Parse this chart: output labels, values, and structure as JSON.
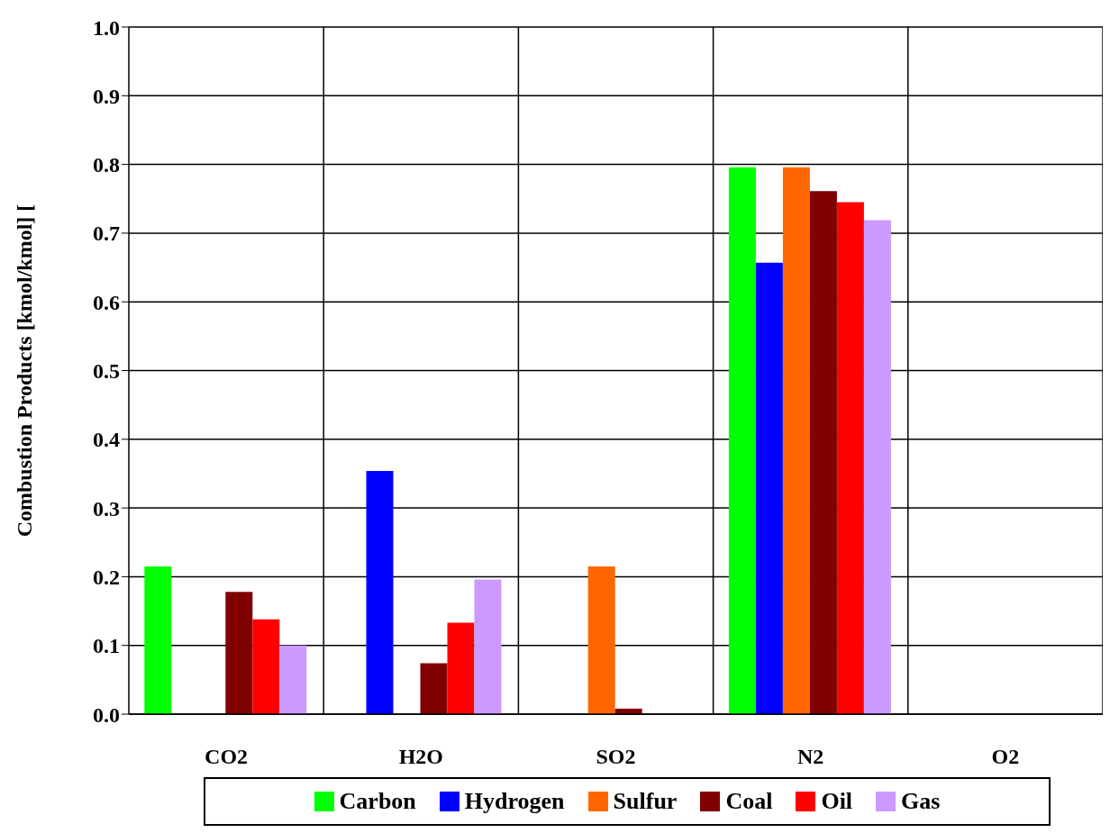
{
  "chart_data": {
    "type": "bar",
    "ylabel": "Combustion Products [kmol/kmol] [",
    "categories": [
      "CO2",
      "H2O",
      "SO2",
      "N2",
      "O2"
    ],
    "series": [
      {
        "name": "Carbon",
        "color": "#00ff00",
        "values": [
          0.215,
          0,
          0,
          0.796,
          0
        ]
      },
      {
        "name": "Hydrogen",
        "color": "#0000ff",
        "values": [
          0,
          0.354,
          0,
          0.657,
          0
        ]
      },
      {
        "name": "Sulfur",
        "color": "#ff6600",
        "values": [
          0,
          0,
          0.215,
          0.796,
          0
        ]
      },
      {
        "name": "Coal",
        "color": "#800000",
        "values": [
          0.178,
          0.074,
          0.008,
          0.761,
          0
        ]
      },
      {
        "name": "Oil",
        "color": "#ff0000",
        "values": [
          0.138,
          0.133,
          0,
          0.745,
          0
        ]
      },
      {
        "name": "Gas",
        "color": "#cc99ff",
        "values": [
          0.1,
          0.196,
          0,
          0.719,
          0
        ]
      }
    ],
    "ylim": [
      0,
      1
    ],
    "yticks": [
      {
        "value": 0,
        "label": "0.0"
      },
      0.1,
      0.2,
      0.3,
      0.4,
      0.5,
      0.6,
      0.7,
      0.8,
      0.9,
      {
        "value": 1,
        "label": "1.0"
      }
    ],
    "grid": true,
    "legend": "bottom"
  }
}
